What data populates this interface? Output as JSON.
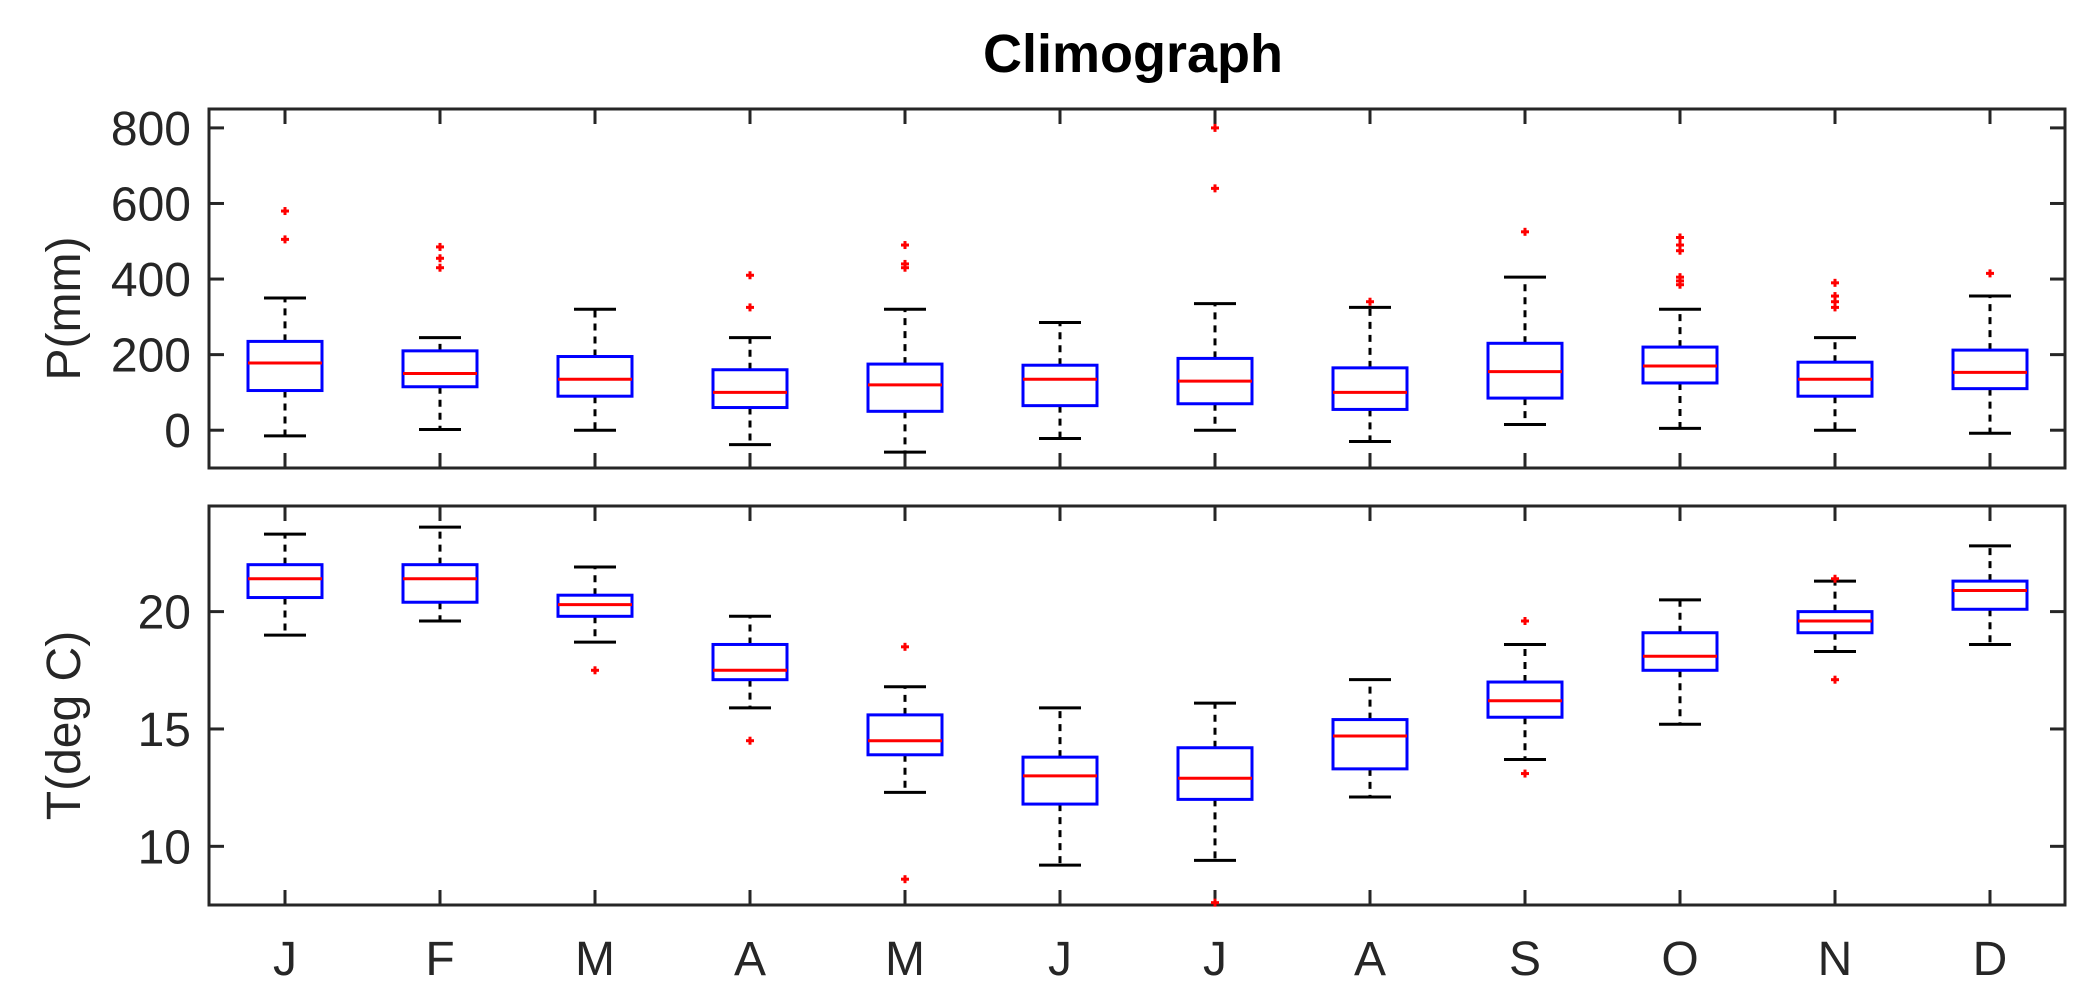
{
  "title": "Climograph",
  "colors": {
    "box": "#0000ff",
    "median": "#ff0000",
    "whisker": "#000000",
    "outlier": "#ff0000",
    "axis": "#262626"
  },
  "chart_data": [
    {
      "type": "box",
      "name": "precipitation",
      "title": "Climograph",
      "xlabel": "",
      "ylabel": "P(mm)",
      "ylim": [
        -100,
        850
      ],
      "yticks": [
        0,
        200,
        400,
        600,
        800
      ],
      "categories": [
        "J",
        "F",
        "M",
        "A",
        "M",
        "J",
        "J",
        "A",
        "S",
        "O",
        "N",
        "D"
      ],
      "boxes": [
        {
          "q1": 105,
          "median": 178,
          "q3": 235,
          "whisker_low": -15,
          "whisker_high": 350,
          "outliers": [
            505,
            580
          ]
        },
        {
          "q1": 115,
          "median": 150,
          "q3": 210,
          "whisker_low": 2,
          "whisker_high": 245,
          "outliers": [
            430,
            455,
            485
          ]
        },
        {
          "q1": 90,
          "median": 135,
          "q3": 195,
          "whisker_low": 0,
          "whisker_high": 320,
          "outliers": []
        },
        {
          "q1": 60,
          "median": 100,
          "q3": 160,
          "whisker_low": -38,
          "whisker_high": 245,
          "outliers": [
            325,
            410
          ]
        },
        {
          "q1": 50,
          "median": 120,
          "q3": 175,
          "whisker_low": -58,
          "whisker_high": 320,
          "outliers": [
            430,
            440,
            490
          ]
        },
        {
          "q1": 65,
          "median": 135,
          "q3": 172,
          "whisker_low": -22,
          "whisker_high": 285,
          "outliers": []
        },
        {
          "q1": 70,
          "median": 130,
          "q3": 190,
          "whisker_low": 0,
          "whisker_high": 335,
          "outliers": [
            640,
            800
          ]
        },
        {
          "q1": 55,
          "median": 100,
          "q3": 165,
          "whisker_low": -30,
          "whisker_high": 325,
          "outliers": [
            340
          ]
        },
        {
          "q1": 85,
          "median": 155,
          "q3": 230,
          "whisker_low": 15,
          "whisker_high": 405,
          "outliers": [
            525
          ]
        },
        {
          "q1": 125,
          "median": 170,
          "q3": 220,
          "whisker_low": 5,
          "whisker_high": 320,
          "outliers": [
            385,
            395,
            405,
            475,
            490,
            510
          ]
        },
        {
          "q1": 90,
          "median": 135,
          "q3": 180,
          "whisker_low": 0,
          "whisker_high": 245,
          "outliers": [
            325,
            340,
            355,
            390
          ]
        },
        {
          "q1": 110,
          "median": 153,
          "q3": 212,
          "whisker_low": -8,
          "whisker_high": 355,
          "outliers": [
            415
          ]
        }
      ]
    },
    {
      "type": "box",
      "name": "temperature",
      "xlabel": "",
      "ylabel": "T(deg C)",
      "ylim": [
        7.5,
        24.5
      ],
      "yticks": [
        10,
        15,
        20
      ],
      "categories": [
        "J",
        "F",
        "M",
        "A",
        "M",
        "J",
        "J",
        "A",
        "S",
        "O",
        "N",
        "D"
      ],
      "boxes": [
        {
          "q1": 20.6,
          "median": 21.4,
          "q3": 22.0,
          "whisker_low": 19.0,
          "whisker_high": 23.3,
          "outliers": []
        },
        {
          "q1": 20.4,
          "median": 21.4,
          "q3": 22.0,
          "whisker_low": 19.6,
          "whisker_high": 23.6,
          "outliers": []
        },
        {
          "q1": 19.8,
          "median": 20.3,
          "q3": 20.7,
          "whisker_low": 18.7,
          "whisker_high": 21.9,
          "outliers": [
            17.5
          ]
        },
        {
          "q1": 17.1,
          "median": 17.5,
          "q3": 18.6,
          "whisker_low": 15.9,
          "whisker_high": 19.8,
          "outliers": [
            14.5
          ]
        },
        {
          "q1": 13.9,
          "median": 14.5,
          "q3": 15.6,
          "whisker_low": 12.3,
          "whisker_high": 16.8,
          "outliers": [
            8.6,
            18.5
          ]
        },
        {
          "q1": 11.8,
          "median": 13.0,
          "q3": 13.8,
          "whisker_low": 9.2,
          "whisker_high": 15.9,
          "outliers": []
        },
        {
          "q1": 12.0,
          "median": 12.9,
          "q3": 14.2,
          "whisker_low": 9.4,
          "whisker_high": 16.1,
          "outliers": [
            7.6
          ]
        },
        {
          "q1": 13.3,
          "median": 14.7,
          "q3": 15.4,
          "whisker_low": 12.1,
          "whisker_high": 17.1,
          "outliers": []
        },
        {
          "q1": 15.5,
          "median": 16.2,
          "q3": 17.0,
          "whisker_low": 13.7,
          "whisker_high": 18.6,
          "outliers": [
            13.1,
            19.6
          ]
        },
        {
          "q1": 17.5,
          "median": 18.1,
          "q3": 19.1,
          "whisker_low": 15.2,
          "whisker_high": 20.5,
          "outliers": []
        },
        {
          "q1": 19.1,
          "median": 19.6,
          "q3": 20.0,
          "whisker_low": 18.3,
          "whisker_high": 21.3,
          "outliers": [
            17.1,
            21.4
          ]
        },
        {
          "q1": 20.1,
          "median": 20.9,
          "q3": 21.3,
          "whisker_low": 18.6,
          "whisker_high": 22.8,
          "outliers": []
        }
      ]
    }
  ]
}
